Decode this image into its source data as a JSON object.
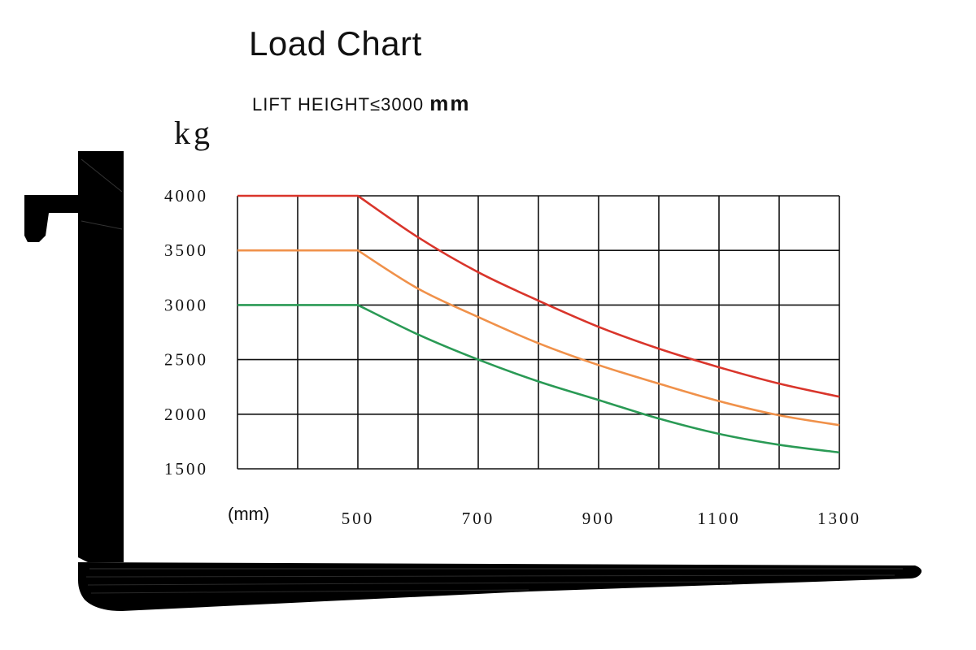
{
  "chart_data": {
    "type": "line",
    "title": "Load Chart",
    "subtitle": "LIFT HEIGHT≤3000",
    "subtitle_unit": "mm",
    "ylabel": "kg",
    "xlabel": "(mm)",
    "xlim": [
      300,
      1300
    ],
    "ylim": [
      1500,
      4000
    ],
    "x_ticks": [
      500,
      700,
      900,
      1100,
      1300
    ],
    "y_ticks": [
      1500,
      2000,
      2500,
      3000,
      3500,
      4000
    ],
    "grid": true,
    "series": [
      {
        "color": "#d9352b",
        "x": [
          300,
          500,
          600,
          700,
          800,
          900,
          1000,
          1100,
          1200,
          1300
        ],
        "y": [
          4000,
          4000,
          3620,
          3300,
          3040,
          2800,
          2600,
          2430,
          2280,
          2160
        ]
      },
      {
        "color": "#f0914a",
        "x": [
          300,
          500,
          600,
          700,
          800,
          900,
          1000,
          1100,
          1200,
          1300
        ],
        "y": [
          3500,
          3500,
          3150,
          2890,
          2650,
          2450,
          2280,
          2120,
          1990,
          1900
        ]
      },
      {
        "color": "#2a9a55",
        "x": [
          300,
          500,
          600,
          700,
          800,
          900,
          1000,
          1100,
          1200,
          1300
        ],
        "y": [
          3000,
          3000,
          2730,
          2500,
          2300,
          2130,
          1960,
          1820,
          1720,
          1650
        ]
      }
    ]
  },
  "fork_icon": "forklift-fork-icon"
}
